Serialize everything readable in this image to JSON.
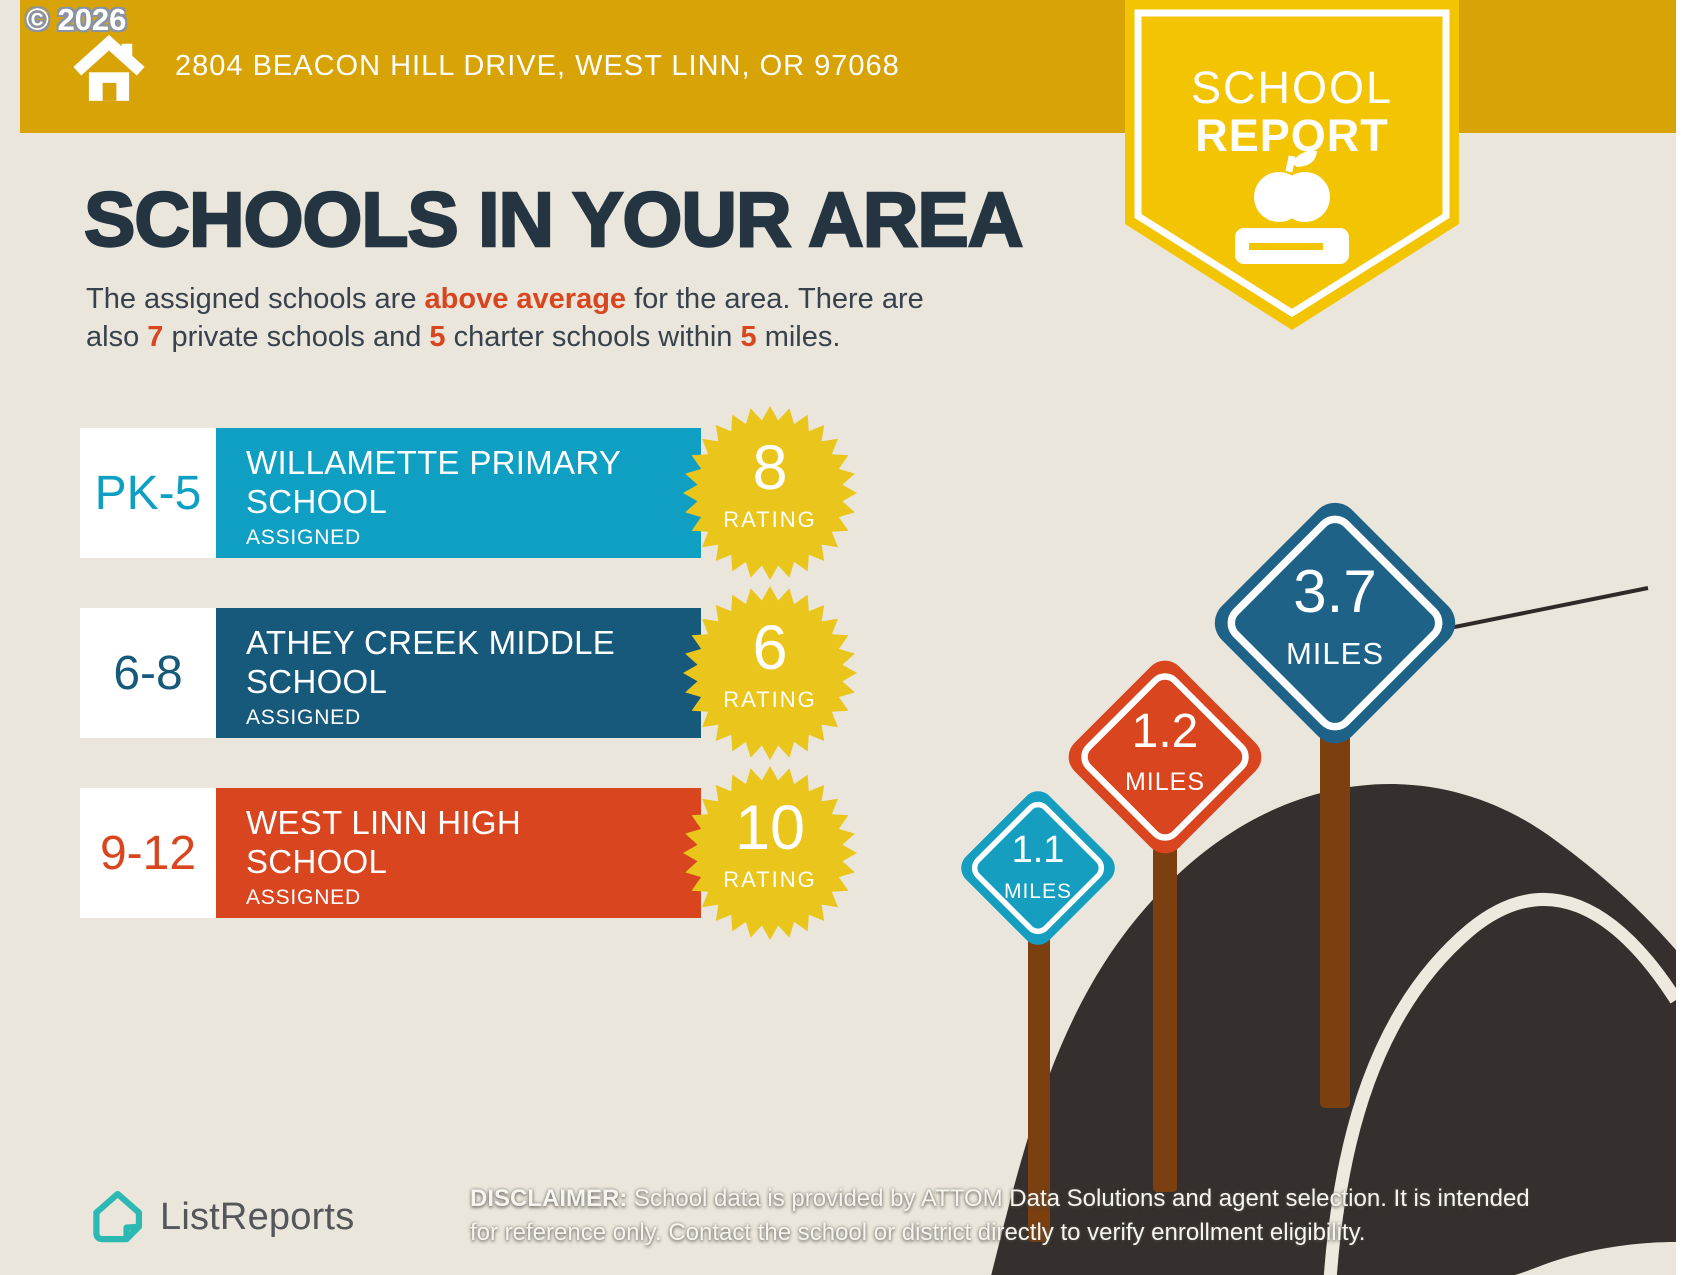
{
  "copyright": "© 2026",
  "header": {
    "address": "2804 BEACON HILL DRIVE, WEST LINN, OR 97068",
    "banner_color": "#D7A306"
  },
  "ribbon": {
    "line1": "SCHOOL",
    "line2": "REPORT",
    "color": "#F3C402"
  },
  "main": {
    "title": "SCHOOLS IN YOUR AREA",
    "subtitle_line1": [
      {
        "t": "The assigned schools are "
      },
      {
        "t": "above average",
        "hl": true
      },
      {
        "t": " for the area. There are"
      }
    ],
    "subtitle_line2": [
      {
        "t": "also "
      },
      {
        "t": "7",
        "hl": true
      },
      {
        "t": " private schools and "
      },
      {
        "t": "5",
        "hl": true
      },
      {
        "t": " charter schools within "
      },
      {
        "t": "5",
        "hl": true
      },
      {
        "t": " miles."
      }
    ],
    "highlight_color": "#D8451F"
  },
  "schools": [
    {
      "grades": "PK-5",
      "name_line1": "WILLAMETTE PRIMARY",
      "name_line2": "SCHOOL",
      "status": "ASSIGNED",
      "rating": "8",
      "rating_label": "RATING",
      "color": "#0E9FC3"
    },
    {
      "grades": "6-8",
      "name_line1": "ATHEY CREEK MIDDLE",
      "name_line2": "SCHOOL",
      "status": "ASSIGNED",
      "rating": "6",
      "rating_label": "RATING",
      "color": "#17597B"
    },
    {
      "grades": "9-12",
      "name_line1": "WEST LINN HIGH",
      "name_line2": "SCHOOL",
      "status": "ASSIGNED",
      "rating": "10",
      "rating_label": "RATING",
      "color": "#D8451F"
    }
  ],
  "signs": [
    {
      "distance": "1.1",
      "unit": "MILES",
      "color": "#169EC0"
    },
    {
      "distance": "1.2",
      "unit": "MILES",
      "color": "#D8451F"
    },
    {
      "distance": "3.7",
      "unit": "MILES",
      "color": "#1E6288"
    }
  ],
  "footer": {
    "logo_text": "ListReports",
    "logo_color": "#2CB9B4",
    "disclaimer_label": "DISCLAIMER:",
    "disclaimer_line1": " School data is provided by ATTOM Data Solutions and agent selection. It is intended",
    "disclaimer_line2": "for reference only. Contact the school or district directly to verify enrollment eligibility."
  },
  "colors": {
    "background": "#EAE6DB",
    "starburst": "#EAC51C",
    "road": "#35302D",
    "lane_line": "#EDE9DE",
    "post": "#7B3F10",
    "title_text": "#253441"
  }
}
